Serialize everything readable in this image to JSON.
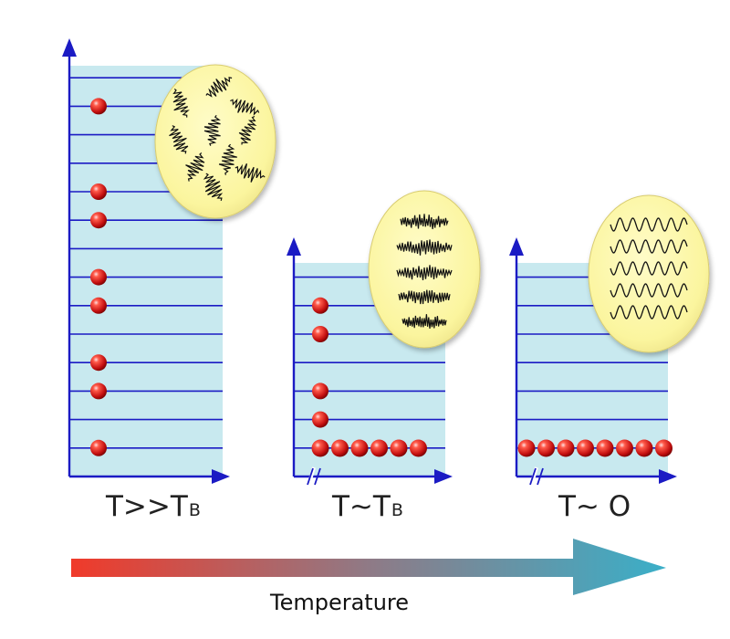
{
  "panels": [
    {
      "id": "high",
      "label_main": "T>>T",
      "label_sub": "B",
      "level_count": 14,
      "occupied_levels": [
        13,
        10,
        9,
        7,
        6,
        4,
        3,
        1
      ],
      "ground_particles": 0,
      "inset_pattern": "random-oscillations"
    },
    {
      "id": "near",
      "label_main": "T∼T",
      "label_sub": "B",
      "level_count": 7,
      "occupied_levels": [
        6,
        5,
        3,
        2
      ],
      "ground_particles": 6,
      "inset_pattern": "noisy-waves"
    },
    {
      "id": "zero",
      "label_main": "T∼ O",
      "label_sub": "",
      "level_count": 7,
      "occupied_levels": [],
      "ground_particles": 8,
      "inset_pattern": "coherent-waves"
    }
  ],
  "temperature_axis": {
    "label": "Temperature",
    "color_start": "#f03a2a",
    "color_end": "#3aafc8"
  },
  "colors": {
    "panel_fill": "#c8e9ef",
    "axis": "#1b1bc4",
    "particle": "#c81414",
    "inset_fill": "#fbf59e"
  }
}
